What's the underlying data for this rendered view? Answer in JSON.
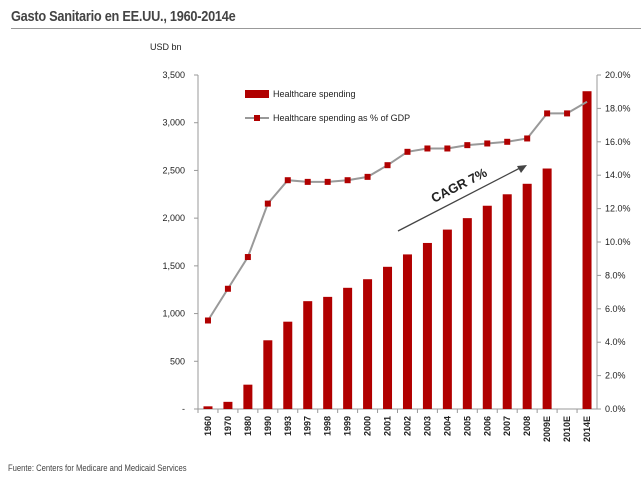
{
  "title": "Gasto Sanitario en EE.UU., 1960-2014e",
  "source": "Fuente: Centers for Medicare and Medicaid Services",
  "chart_data": {
    "type": "bar",
    "title": "Gasto Sanitario en EE.UU., 1960-2014e",
    "ylabel": "USD bn",
    "ylim": [
      0,
      3500
    ],
    "y2lim": [
      0,
      20
    ],
    "yticks": [
      "-",
      "500",
      "1,000",
      "1,500",
      "2,000",
      "2,500",
      "3,000",
      "3,500"
    ],
    "y2ticks": [
      "0.0%",
      "2.0%",
      "4.0%",
      "6.0%",
      "8.0%",
      "10.0%",
      "12.0%",
      "14.0%",
      "16.0%",
      "18.0%",
      "20.0%"
    ],
    "categories": [
      "1960",
      "1970",
      "1980",
      "1990",
      "1993",
      "1997",
      "1998",
      "1999",
      "2000",
      "2001",
      "2002",
      "2003",
      "2004",
      "2005",
      "2006",
      "2007",
      "2008",
      "2009E",
      "2010E",
      "2014E"
    ],
    "series": [
      {
        "name": "Healthcare spending",
        "type": "bar",
        "axis": "left",
        "color": "#b00000",
        "values": [
          28,
          75,
          255,
          720,
          915,
          1130,
          1175,
          1270,
          1360,
          1490,
          1620,
          1740,
          1880,
          2000,
          2130,
          2250,
          2360,
          2520,
          null,
          3330
        ]
      },
      {
        "name": "Healthcare spending as % of GDP",
        "type": "line",
        "axis": "right",
        "color": "#999999",
        "marker_color": "#b00000",
        "values": [
          5.3,
          7.2,
          9.1,
          12.3,
          13.7,
          13.6,
          13.6,
          13.7,
          13.9,
          14.6,
          15.4,
          15.6,
          15.6,
          15.8,
          15.9,
          16.0,
          16.2,
          17.7,
          17.7,
          18.4
        ]
      }
    ],
    "annotations": [
      "CAGR 7%"
    ],
    "legend": "top-left inside plot",
    "grid": false
  }
}
